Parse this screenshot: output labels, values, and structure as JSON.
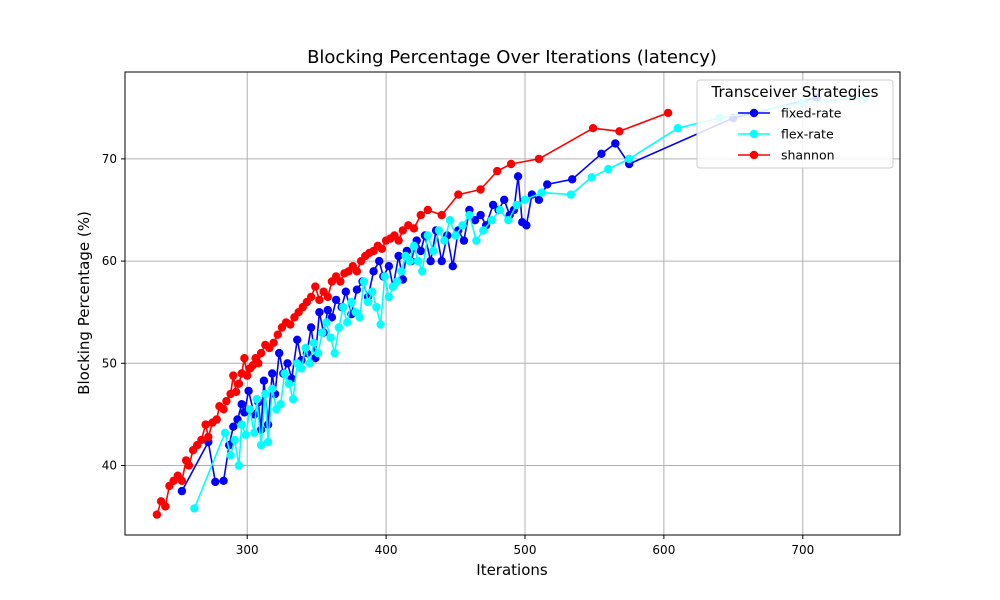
{
  "chart_data": {
    "type": "line",
    "title": "Blocking Percentage Over Iterations (latency)",
    "xlabel": "Iterations",
    "ylabel": "Blocking Percentage (%)",
    "xlim": [
      212,
      770
    ],
    "ylim": [
      33.2,
      78.5
    ],
    "xticks": [
      300,
      400,
      500,
      600,
      700
    ],
    "yticks": [
      40,
      50,
      60,
      70
    ],
    "grid": true,
    "legend": {
      "title": "Transceiver Strategies",
      "placement": "top-right"
    },
    "series": [
      {
        "name": "fixed-rate",
        "color": "#0000ff",
        "x": [
          253,
          272,
          277,
          283,
          287,
          290,
          293,
          296,
          298,
          301,
          305,
          308,
          310,
          312,
          315,
          318,
          320,
          323,
          326,
          329,
          332,
          336,
          339,
          343,
          346,
          349,
          352,
          355,
          358,
          361,
          364,
          368,
          371,
          375,
          379,
          383,
          387,
          391,
          395,
          398,
          402,
          405,
          409,
          412,
          415,
          418,
          422,
          425,
          428,
          432,
          436,
          440,
          444,
          448,
          452,
          456,
          460,
          464,
          468,
          472,
          477,
          481,
          485,
          489,
          492,
          495,
          498,
          501,
          505,
          510,
          516,
          534,
          555,
          565,
          575,
          650,
          710
        ],
        "y": [
          37.5,
          42.3,
          38.4,
          38.5,
          42.0,
          43.8,
          44.5,
          46.0,
          45.2,
          47.3,
          45.0,
          46.2,
          43.5,
          48.3,
          44.0,
          49.0,
          47.0,
          51.0,
          49.0,
          50.0,
          48.5,
          52.3,
          50.3,
          51.0,
          53.5,
          50.5,
          55.0,
          53.0,
          55.2,
          54.5,
          56.2,
          55.5,
          57.0,
          54.8,
          57.2,
          58.0,
          56.5,
          59.0,
          60.0,
          58.5,
          59.5,
          57.5,
          60.5,
          58.2,
          61.0,
          60.0,
          62.0,
          61.0,
          62.5,
          60.0,
          63.0,
          60.0,
          62.5,
          59.5,
          63.0,
          62.0,
          65.0,
          64.0,
          64.5,
          63.5,
          65.5,
          65.0,
          66.0,
          64.5,
          65.0,
          68.3,
          63.8,
          63.5,
          66.5,
          66.0,
          67.5,
          68.0,
          70.5,
          71.5,
          69.5,
          74.0,
          76.0
        ]
      },
      {
        "name": "flex-rate",
        "color": "#00ffff",
        "x": [
          262,
          284,
          288,
          291,
          294,
          296,
          299,
          302,
          305,
          307,
          310,
          313,
          315,
          318,
          321,
          324,
          327,
          330,
          333,
          336,
          339,
          342,
          345,
          348,
          351,
          354,
          357,
          360,
          363,
          366,
          369,
          372,
          375,
          378,
          381,
          384,
          387,
          390,
          393,
          396,
          399,
          402,
          405,
          408,
          411,
          414,
          417,
          420,
          423,
          426,
          430,
          434,
          438,
          442,
          446,
          450,
          455,
          460,
          465,
          470,
          476,
          482,
          488,
          494,
          500,
          512,
          533,
          548,
          560,
          575,
          610,
          640,
          700,
          745
        ],
        "y": [
          35.8,
          43.2,
          41.0,
          42.5,
          40.0,
          44.0,
          43.0,
          45.5,
          43.2,
          46.5,
          42.0,
          47.0,
          42.3,
          47.5,
          45.5,
          46.0,
          49.0,
          48.0,
          46.5,
          50.0,
          49.5,
          51.5,
          50.0,
          52.0,
          51.0,
          53.0,
          54.0,
          52.5,
          51.0,
          53.5,
          55.5,
          54.0,
          56.0,
          55.0,
          54.5,
          58.0,
          56.0,
          57.0,
          55.5,
          53.8,
          58.5,
          56.5,
          57.5,
          58.0,
          59.0,
          60.5,
          60.0,
          61.5,
          60.0,
          59.0,
          62.5,
          61.0,
          63.0,
          62.0,
          64.0,
          62.5,
          63.5,
          64.5,
          62.0,
          63.0,
          64.0,
          65.0,
          64.0,
          65.5,
          66.0,
          66.7,
          66.5,
          68.2,
          69.0,
          70.0,
          73.0,
          74.0,
          75.5,
          76.0
        ]
      },
      {
        "name": "shannon",
        "color": "#ff0000",
        "x": [
          235,
          238,
          241,
          244,
          247,
          250,
          253,
          256,
          258,
          261,
          264,
          267,
          270,
          272,
          275,
          278,
          280,
          283,
          285,
          288,
          290,
          292,
          294,
          296,
          298,
          300,
          302,
          304,
          306,
          308,
          310,
          313,
          316,
          319,
          322,
          325,
          328,
          331,
          334,
          337,
          340,
          343,
          346,
          349,
          352,
          355,
          358,
          361,
          364,
          367,
          370,
          373,
          376,
          379,
          382,
          385,
          388,
          391,
          394,
          397,
          400,
          403,
          406,
          409,
          412,
          416,
          420,
          425,
          430,
          440,
          452,
          468,
          480,
          490,
          510,
          549,
          568,
          603
        ],
        "y": [
          35.2,
          36.5,
          36.0,
          38.0,
          38.5,
          39.0,
          38.5,
          40.5,
          40.0,
          41.5,
          42.0,
          42.5,
          44.0,
          42.8,
          44.2,
          44.5,
          45.8,
          45.5,
          46.3,
          47.0,
          48.8,
          47.2,
          48.0,
          49.0,
          50.5,
          48.8,
          49.5,
          49.8,
          50.5,
          50.0,
          51.0,
          51.8,
          51.5,
          52.0,
          52.8,
          53.5,
          54.0,
          53.8,
          54.5,
          55.0,
          55.5,
          56.0,
          56.5,
          57.5,
          56.2,
          57.0,
          56.5,
          58.0,
          58.5,
          58.0,
          58.8,
          59.0,
          59.5,
          59.0,
          60.0,
          60.5,
          60.8,
          61.0,
          61.5,
          61.2,
          62.0,
          62.2,
          62.5,
          62.0,
          63.0,
          63.5,
          63.2,
          64.5,
          65.0,
          64.5,
          66.5,
          67.0,
          68.8,
          69.5,
          70.0,
          73.0,
          72.7,
          74.5
        ]
      }
    ]
  }
}
